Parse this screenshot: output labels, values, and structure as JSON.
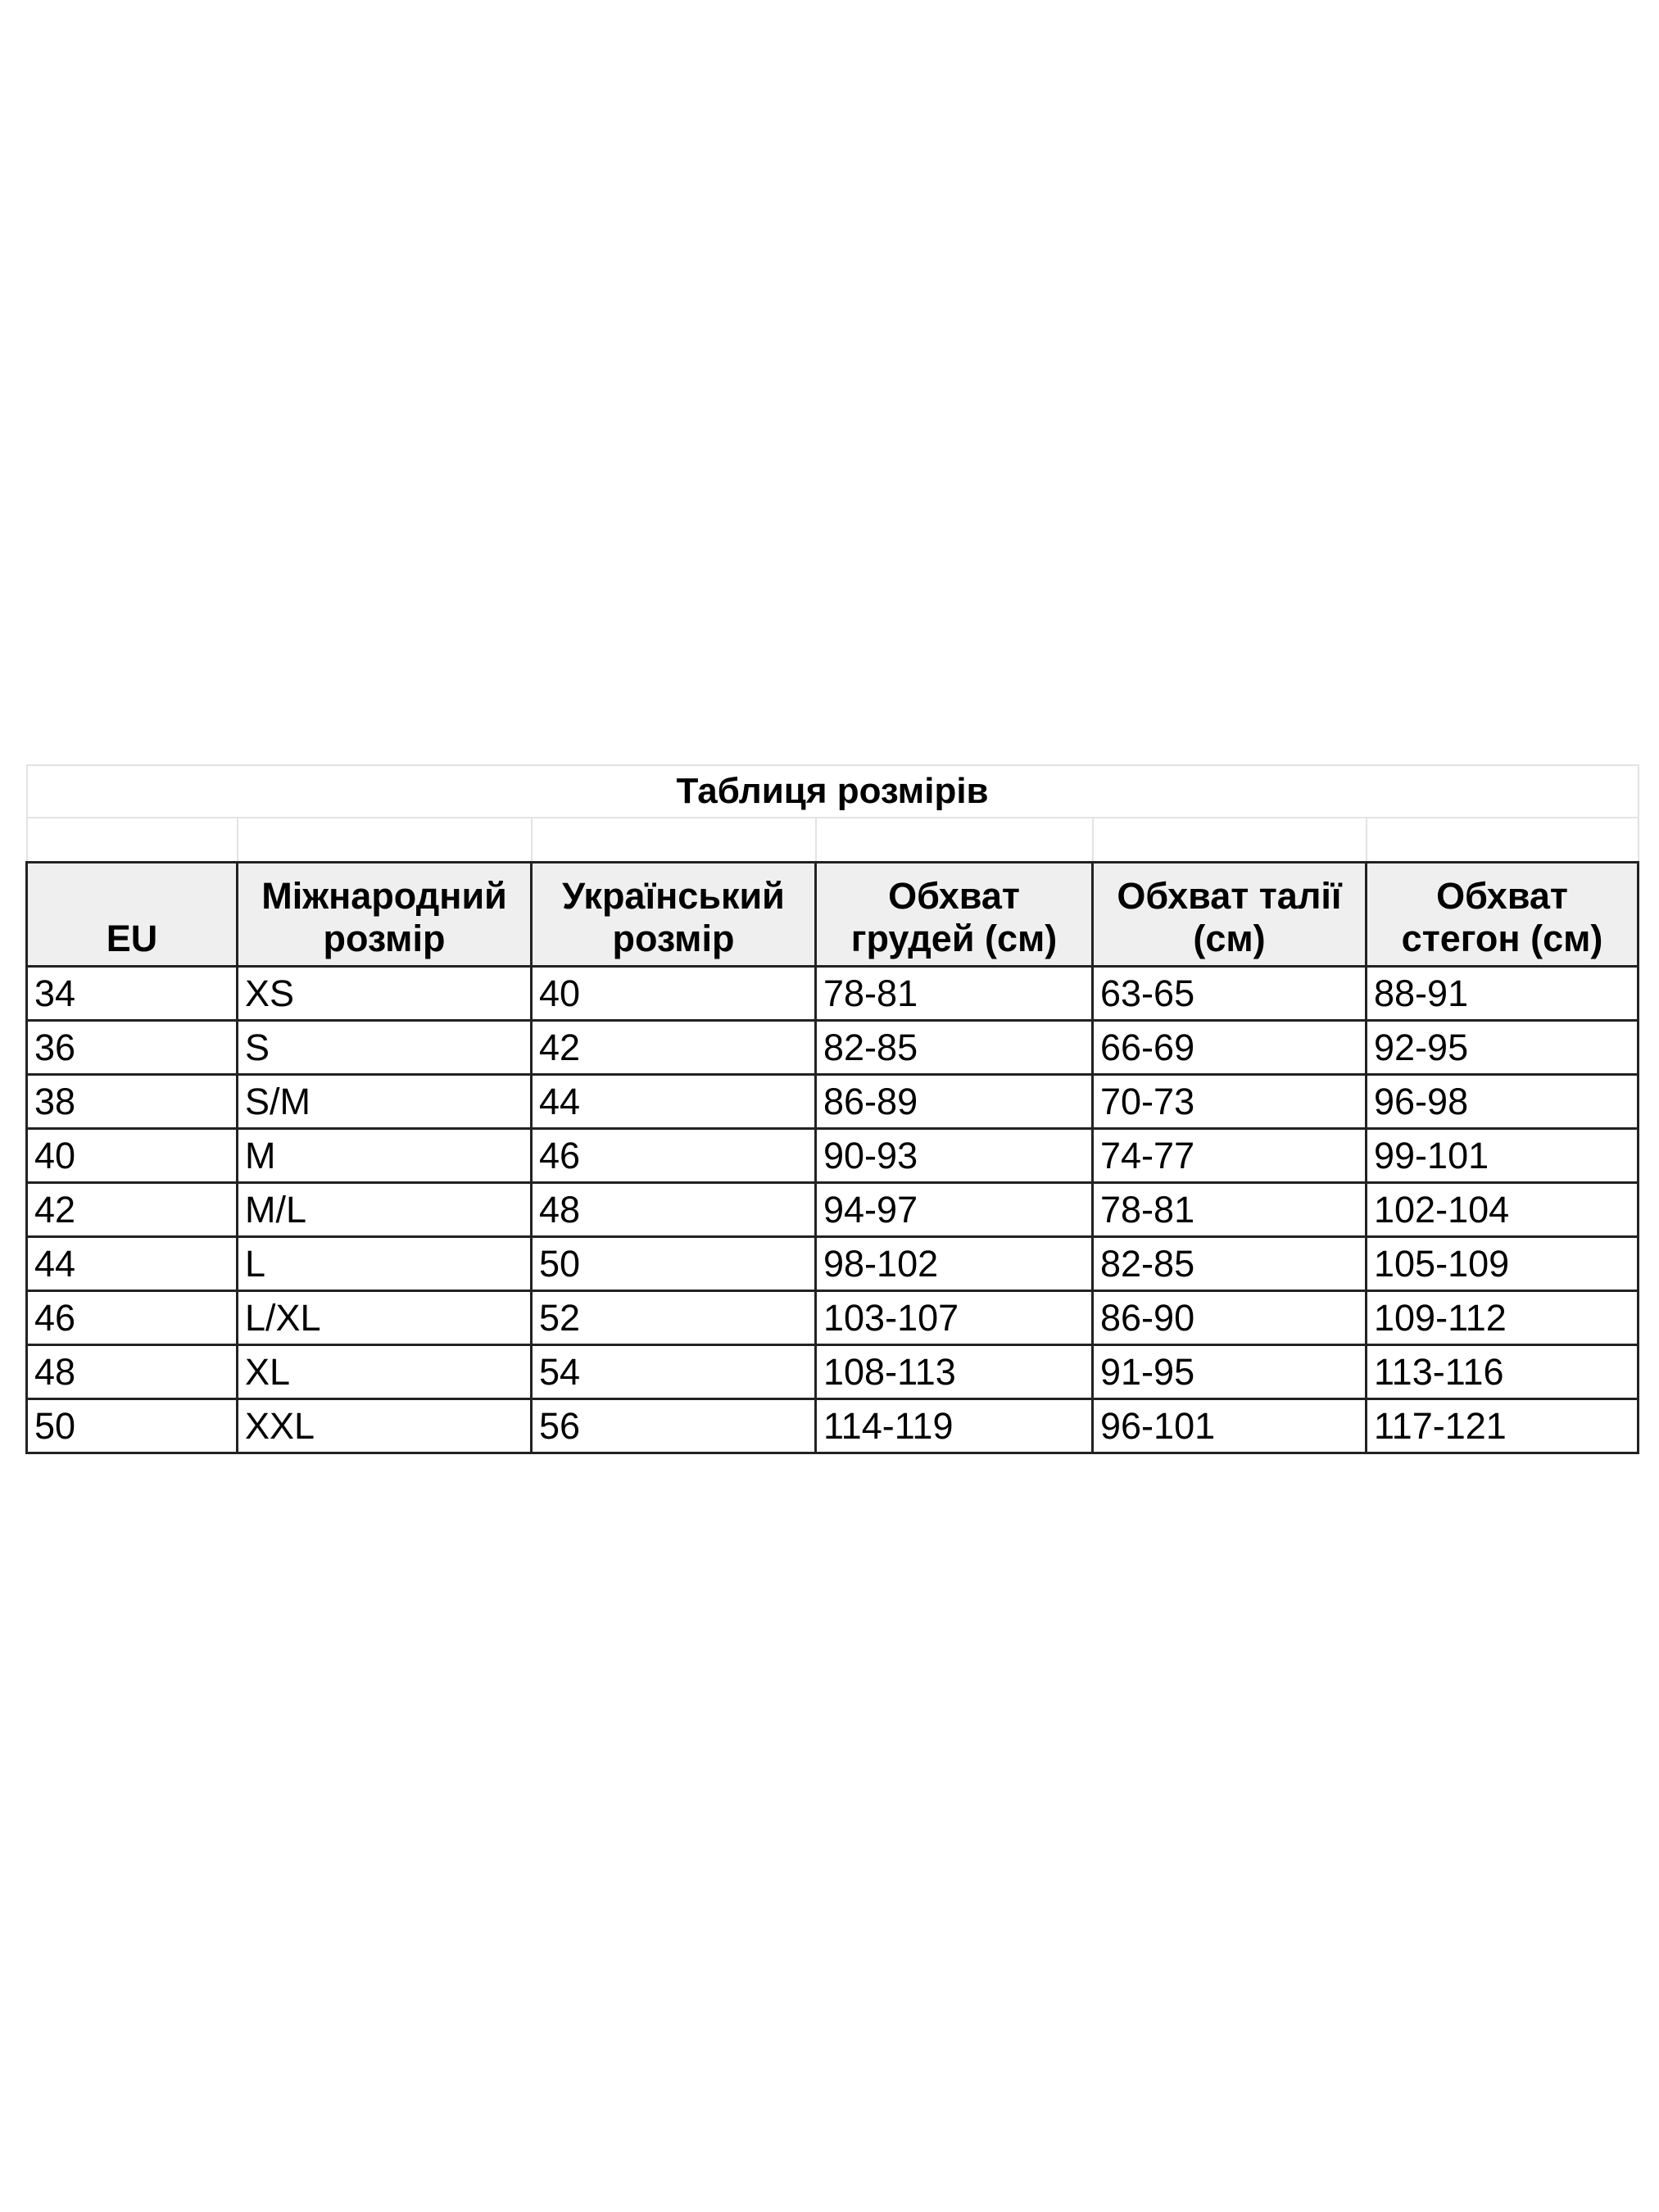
{
  "title": "Таблиця розмірів",
  "columns": [
    "EU",
    "Міжнародний розмір",
    "Український розмір",
    "Обхват грудей (см)",
    "Обхват талії (см)",
    "Обхват стегон (см)"
  ],
  "rows": [
    [
      "34",
      "XS",
      "40",
      "78-81",
      "63-65",
      "88-91"
    ],
    [
      "36",
      "S",
      "42",
      "82-85",
      "66-69",
      "92-95"
    ],
    [
      "38",
      "S/M",
      "44",
      "86-89",
      "70-73",
      "96-98"
    ],
    [
      "40",
      "M",
      "46",
      "90-93",
      "74-77",
      "99-101"
    ],
    [
      "42",
      "M/L",
      "48",
      "94-97",
      "78-81",
      "102-104"
    ],
    [
      "44",
      "L",
      "50",
      "98-102",
      "82-85",
      "105-109"
    ],
    [
      "46",
      "L/XL",
      "52",
      "103-107",
      "86-90",
      "109-112"
    ],
    [
      "48",
      "XL",
      "54",
      "108-113",
      "91-95",
      "113-116"
    ],
    [
      "50",
      "XXL",
      "56",
      "114-119",
      "96-101",
      "117-121"
    ]
  ],
  "colors": {
    "header_bg": "#efefef",
    "border": "#222222",
    "grid_light": "#e3e3e3"
  }
}
